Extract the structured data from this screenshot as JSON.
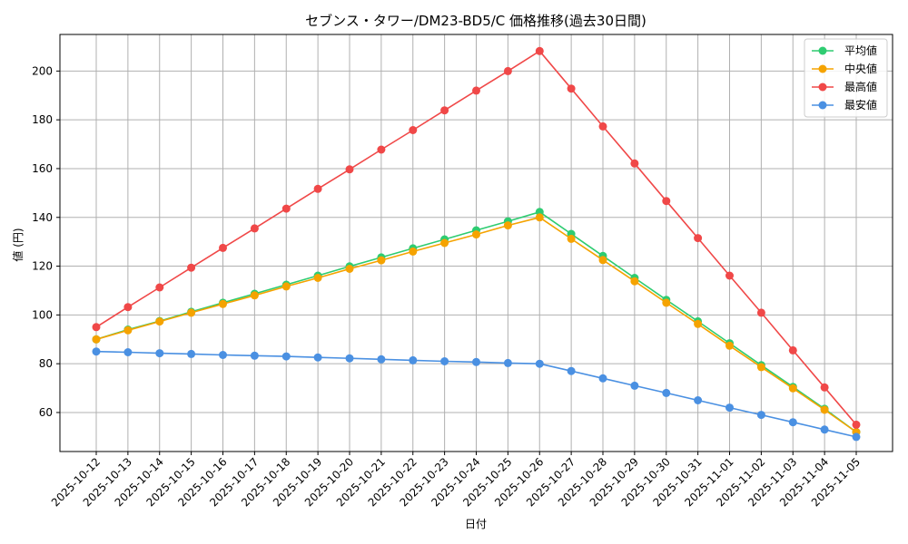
{
  "chart_data": {
    "type": "line",
    "title": "セブンス・タワー/DM23-BD5/C 価格推移(過去30日間)",
    "xlabel": "日付",
    "ylabel": "値 (円)",
    "ylim": [
      44,
      215
    ],
    "yticks": [
      60,
      80,
      100,
      120,
      140,
      160,
      180,
      200
    ],
    "grid": true,
    "legend_position": "top-right",
    "categories": [
      "2025-10-12",
      "2025-10-13",
      "2025-10-14",
      "2025-10-15",
      "2025-10-16",
      "2025-10-17",
      "2025-10-18",
      "2025-10-19",
      "2025-10-20",
      "2025-10-21",
      "2025-10-22",
      "2025-10-23",
      "2025-10-24",
      "2025-10-25",
      "2025-10-26",
      "2025-10-27",
      "2025-10-28",
      "2025-10-29",
      "2025-10-30",
      "2025-10-31",
      "2025-11-01",
      "2025-11-02",
      "2025-11-03",
      "2025-11-04",
      "2025-11-05"
    ],
    "series": [
      {
        "name": "平均値",
        "color": "#2ecc71",
        "values": [
          90,
          94,
          97.5,
          101.3,
          105,
          108.7,
          112.4,
          116.1,
          119.9,
          123.6,
          127.3,
          131,
          134.7,
          138.4,
          142.2,
          133.2,
          124.2,
          115.2,
          106.2,
          97.4,
          88.4,
          79.4,
          70.5,
          61.5,
          52
        ]
      },
      {
        "name": "中央値",
        "color": "#f5a300",
        "values": [
          90,
          93.7,
          97.3,
          100.9,
          104.5,
          108,
          111.7,
          115.2,
          118.9,
          122.4,
          126,
          129.5,
          133,
          136.7,
          140,
          131.2,
          122.5,
          113.8,
          105,
          96.3,
          87.4,
          78.6,
          69.9,
          61.1,
          52
        ]
      },
      {
        "name": "最高値",
        "color": "#f04848",
        "values": [
          95,
          103.2,
          111.3,
          119.4,
          127.5,
          135.5,
          143.6,
          151.7,
          159.7,
          167.8,
          175.8,
          183.9,
          192,
          200,
          208.2,
          192.8,
          177.3,
          162.1,
          146.7,
          131.5,
          116.1,
          100.9,
          85.5,
          70.3,
          55
        ]
      },
      {
        "name": "最安値",
        "color": "#4a90e2",
        "values": [
          85,
          84.7,
          84.3,
          84,
          83.6,
          83.3,
          83,
          82.6,
          82.2,
          81.8,
          81.4,
          81,
          80.7,
          80.3,
          80,
          77,
          74,
          71,
          68,
          65,
          62,
          59,
          56,
          53,
          50
        ]
      }
    ]
  }
}
